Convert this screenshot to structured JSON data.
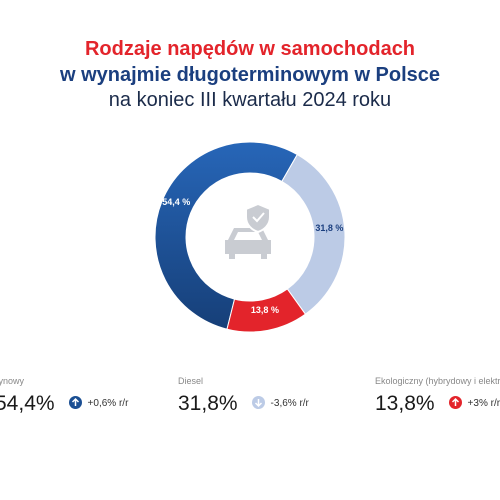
{
  "chart_data": {
    "type": "donut",
    "title": "Rodzaje napędów w samochodach",
    "subtitle": "w wynajmie długoterminowym w Polsce",
    "subtitle2": "na koniec III kwartału 2024 roku",
    "categories": [
      "Benzynowy",
      "Diesel",
      "Ekologiczny (hybrydowy i elektryczny)"
    ],
    "values": [
      54.4,
      31.8,
      13.8
    ],
    "value_labels": [
      "54,4 %",
      "31,8 %",
      "13,8 %"
    ],
    "colors": [
      "#1d5aa7",
      "#bccbe6",
      "#e3242b"
    ],
    "legend": [
      {
        "value_label": "54,4%",
        "change": "+0,6% r/r",
        "direction": "up",
        "color": "#1b4f93"
      },
      {
        "value_label": "31,8%",
        "change": "-3,6% r/r",
        "direction": "down",
        "color": "#bccbe6"
      },
      {
        "value_label": "13,8%",
        "change": "+3% r/r",
        "direction": "up",
        "color": "#e3242b"
      }
    ]
  }
}
